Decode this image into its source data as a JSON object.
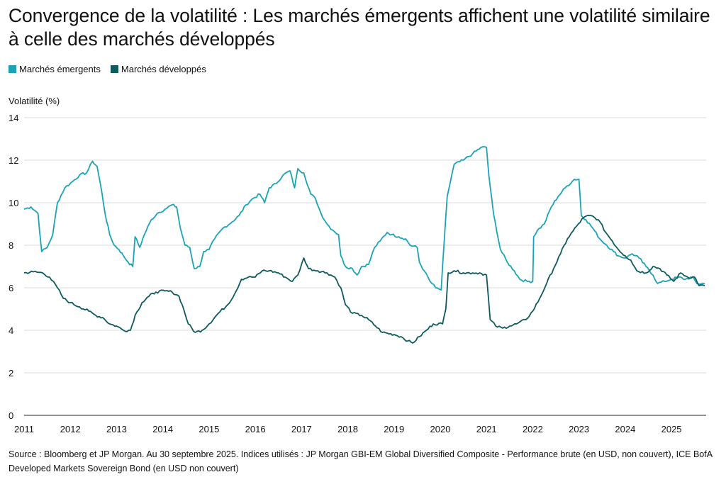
{
  "title": "Convergence de la volatilité : Les marchés émergents affichent une volatilité similaire à celle des marchés développés",
  "legend": [
    {
      "label": "Marchés émergents",
      "color": "#1aa3b7"
    },
    {
      "label": "Marchés développés",
      "color": "#0f5a5e"
    }
  ],
  "source": "Source : Bloomberg et JP Morgan. Au 30 septembre 2025. Indices utilisés : JP Morgan GBI-EM Global Diversified Composite - Performance brute (en USD, non couvert), ICE BofA Developed Markets Sovereign Bond (en USD non couvert)",
  "chart_data": {
    "type": "line",
    "ylabel": "Volatilité (%)",
    "xlabel": "",
    "ylim": [
      0,
      14
    ],
    "yticks": [
      "0",
      "2",
      "4",
      "6",
      "8",
      "10",
      "12",
      "14"
    ],
    "xlim": [
      2011,
      2025.75
    ],
    "xticks": [
      "2011",
      "2012",
      "2013",
      "2014",
      "2015",
      "2016",
      "2017",
      "2018",
      "2019",
      "2020",
      "2021",
      "2022",
      "2023",
      "2024",
      "2025"
    ],
    "grid": "horizontal",
    "legend_position": "top-left",
    "series": [
      {
        "name": "Marchés émergents",
        "color": "#1aa3b7",
        "points": [
          [
            2011.0,
            9.7
          ],
          [
            2011.15,
            9.8
          ],
          [
            2011.3,
            9.5
          ],
          [
            2011.38,
            7.7
          ],
          [
            2011.5,
            7.9
          ],
          [
            2011.62,
            8.5
          ],
          [
            2011.72,
            10.0
          ],
          [
            2011.88,
            10.7
          ],
          [
            2012.05,
            11.0
          ],
          [
            2012.2,
            11.3
          ],
          [
            2012.35,
            11.4
          ],
          [
            2012.48,
            11.95
          ],
          [
            2012.58,
            11.7
          ],
          [
            2012.68,
            10.5
          ],
          [
            2012.75,
            9.5
          ],
          [
            2012.85,
            8.5
          ],
          [
            2012.95,
            8.0
          ],
          [
            2013.05,
            7.8
          ],
          [
            2013.15,
            7.5
          ],
          [
            2013.25,
            7.2
          ],
          [
            2013.35,
            7.0
          ],
          [
            2013.4,
            8.4
          ],
          [
            2013.5,
            7.9
          ],
          [
            2013.6,
            8.5
          ],
          [
            2013.75,
            9.2
          ],
          [
            2013.88,
            9.5
          ],
          [
            2014.05,
            9.7
          ],
          [
            2014.2,
            9.9
          ],
          [
            2014.3,
            9.8
          ],
          [
            2014.38,
            8.8
          ],
          [
            2014.48,
            8.0
          ],
          [
            2014.58,
            7.9
          ],
          [
            2014.68,
            6.9
          ],
          [
            2014.8,
            7.0
          ],
          [
            2014.88,
            7.7
          ],
          [
            2015.0,
            7.8
          ],
          [
            2015.12,
            8.3
          ],
          [
            2015.3,
            8.8
          ],
          [
            2015.5,
            9.1
          ],
          [
            2015.65,
            9.4
          ],
          [
            2015.8,
            9.9
          ],
          [
            2015.95,
            10.2
          ],
          [
            2016.1,
            10.4
          ],
          [
            2016.2,
            10.0
          ],
          [
            2016.3,
            10.7
          ],
          [
            2016.45,
            10.9
          ],
          [
            2016.6,
            11.3
          ],
          [
            2016.75,
            11.5
          ],
          [
            2016.85,
            10.7
          ],
          [
            2016.92,
            11.6
          ],
          [
            2017.05,
            11.4
          ],
          [
            2017.2,
            10.4
          ],
          [
            2017.3,
            10.2
          ],
          [
            2017.42,
            9.5
          ],
          [
            2017.55,
            9.0
          ],
          [
            2017.68,
            8.7
          ],
          [
            2017.8,
            8.5
          ],
          [
            2017.85,
            7.5
          ],
          [
            2017.95,
            7.0
          ],
          [
            2018.1,
            6.9
          ],
          [
            2018.2,
            6.6
          ],
          [
            2018.3,
            7.0
          ],
          [
            2018.45,
            7.1
          ],
          [
            2018.58,
            7.9
          ],
          [
            2018.7,
            8.2
          ],
          [
            2018.85,
            8.6
          ],
          [
            2018.95,
            8.5
          ],
          [
            2019.1,
            8.4
          ],
          [
            2019.25,
            8.3
          ],
          [
            2019.35,
            8.0
          ],
          [
            2019.5,
            7.9
          ],
          [
            2019.55,
            7.2
          ],
          [
            2019.65,
            6.8
          ],
          [
            2019.78,
            6.3
          ],
          [
            2019.9,
            6.0
          ],
          [
            2020.02,
            5.9
          ],
          [
            2020.08,
            8.0
          ],
          [
            2020.15,
            10.3
          ],
          [
            2020.3,
            11.8
          ],
          [
            2020.5,
            12.0
          ],
          [
            2020.7,
            12.3
          ],
          [
            2020.88,
            12.6
          ],
          [
            2021.0,
            12.6
          ],
          [
            2021.05,
            11.3
          ],
          [
            2021.15,
            9.5
          ],
          [
            2021.3,
            7.8
          ],
          [
            2021.45,
            7.2
          ],
          [
            2021.6,
            6.8
          ],
          [
            2021.72,
            6.4
          ],
          [
            2021.88,
            6.3
          ],
          [
            2022.0,
            6.3
          ],
          [
            2022.02,
            8.4
          ],
          [
            2022.1,
            8.7
          ],
          [
            2022.25,
            9.0
          ],
          [
            2022.4,
            9.8
          ],
          [
            2022.55,
            10.3
          ],
          [
            2022.7,
            10.7
          ],
          [
            2022.9,
            11.1
          ],
          [
            2023.0,
            11.1
          ],
          [
            2023.05,
            9.4
          ],
          [
            2023.15,
            9.2
          ],
          [
            2023.3,
            8.8
          ],
          [
            2023.45,
            8.3
          ],
          [
            2023.6,
            8.0
          ],
          [
            2023.75,
            7.7
          ],
          [
            2023.85,
            7.5
          ],
          [
            2024.0,
            7.4
          ],
          [
            2024.15,
            7.6
          ],
          [
            2024.3,
            7.4
          ],
          [
            2024.45,
            7.0
          ],
          [
            2024.6,
            6.6
          ],
          [
            2024.7,
            6.2
          ],
          [
            2024.85,
            6.3
          ],
          [
            2025.0,
            6.4
          ],
          [
            2025.15,
            6.5
          ],
          [
            2025.3,
            6.4
          ],
          [
            2025.45,
            6.5
          ],
          [
            2025.55,
            6.2
          ],
          [
            2025.72,
            6.2
          ]
        ]
      },
      {
        "name": "Marchés développés",
        "color": "#0f5a5e",
        "points": [
          [
            2011.0,
            6.7
          ],
          [
            2011.2,
            6.75
          ],
          [
            2011.4,
            6.7
          ],
          [
            2011.55,
            6.5
          ],
          [
            2011.72,
            6.0
          ],
          [
            2011.85,
            5.5
          ],
          [
            2012.0,
            5.3
          ],
          [
            2012.2,
            5.1
          ],
          [
            2012.4,
            4.9
          ],
          [
            2012.55,
            4.7
          ],
          [
            2012.7,
            4.6
          ],
          [
            2012.85,
            4.3
          ],
          [
            2013.0,
            4.2
          ],
          [
            2013.15,
            4.0
          ],
          [
            2013.3,
            4.0
          ],
          [
            2013.4,
            4.7
          ],
          [
            2013.55,
            5.3
          ],
          [
            2013.7,
            5.6
          ],
          [
            2013.85,
            5.8
          ],
          [
            2014.05,
            5.85
          ],
          [
            2014.2,
            5.8
          ],
          [
            2014.35,
            5.6
          ],
          [
            2014.45,
            5.0
          ],
          [
            2014.55,
            4.3
          ],
          [
            2014.7,
            3.9
          ],
          [
            2014.85,
            4.0
          ],
          [
            2015.0,
            4.3
          ],
          [
            2015.2,
            4.8
          ],
          [
            2015.4,
            5.2
          ],
          [
            2015.55,
            5.7
          ],
          [
            2015.7,
            6.4
          ],
          [
            2015.85,
            6.5
          ],
          [
            2016.0,
            6.5
          ],
          [
            2016.15,
            6.8
          ],
          [
            2016.3,
            6.8
          ],
          [
            2016.5,
            6.7
          ],
          [
            2016.65,
            6.5
          ],
          [
            2016.8,
            6.3
          ],
          [
            2016.92,
            6.6
          ],
          [
            2017.05,
            7.4
          ],
          [
            2017.15,
            6.9
          ],
          [
            2017.35,
            6.8
          ],
          [
            2017.55,
            6.7
          ],
          [
            2017.72,
            6.5
          ],
          [
            2017.85,
            6.0
          ],
          [
            2017.95,
            5.2
          ],
          [
            2018.1,
            4.8
          ],
          [
            2018.3,
            4.7
          ],
          [
            2018.45,
            4.5
          ],
          [
            2018.6,
            4.2
          ],
          [
            2018.75,
            3.9
          ],
          [
            2019.0,
            3.8
          ],
          [
            2019.15,
            3.7
          ],
          [
            2019.3,
            3.5
          ],
          [
            2019.4,
            3.4
          ],
          [
            2019.55,
            3.7
          ],
          [
            2019.7,
            4.0
          ],
          [
            2019.85,
            4.3
          ],
          [
            2020.05,
            4.3
          ],
          [
            2020.12,
            5.0
          ],
          [
            2020.17,
            6.7
          ],
          [
            2020.3,
            6.8
          ],
          [
            2020.5,
            6.7
          ],
          [
            2020.7,
            6.7
          ],
          [
            2020.85,
            6.7
          ],
          [
            2021.0,
            6.6
          ],
          [
            2021.08,
            4.5
          ],
          [
            2021.2,
            4.2
          ],
          [
            2021.35,
            4.1
          ],
          [
            2021.5,
            4.2
          ],
          [
            2021.65,
            4.3
          ],
          [
            2021.85,
            4.5
          ],
          [
            2022.0,
            4.9
          ],
          [
            2022.15,
            5.5
          ],
          [
            2022.3,
            6.2
          ],
          [
            2022.45,
            6.9
          ],
          [
            2022.6,
            7.6
          ],
          [
            2022.75,
            8.3
          ],
          [
            2022.95,
            8.9
          ],
          [
            2023.1,
            9.3
          ],
          [
            2023.25,
            9.4
          ],
          [
            2023.42,
            9.2
          ],
          [
            2023.58,
            8.6
          ],
          [
            2023.72,
            8.2
          ],
          [
            2023.85,
            7.8
          ],
          [
            2024.0,
            7.5
          ],
          [
            2024.12,
            7.3
          ],
          [
            2024.25,
            6.8
          ],
          [
            2024.45,
            6.7
          ],
          [
            2024.6,
            7.0
          ],
          [
            2024.75,
            6.9
          ],
          [
            2024.9,
            6.6
          ],
          [
            2025.05,
            6.3
          ],
          [
            2025.2,
            6.7
          ],
          [
            2025.35,
            6.5
          ],
          [
            2025.5,
            6.5
          ],
          [
            2025.6,
            6.1
          ],
          [
            2025.72,
            6.1
          ]
        ]
      }
    ]
  }
}
